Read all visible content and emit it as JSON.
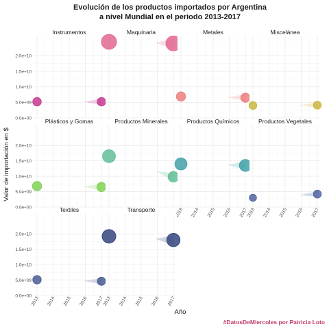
{
  "chart_data": {
    "type": "scatter",
    "title_lines": [
      "Evolución de los productos importados por Argentina",
      "a nivel Mundial en el periodo 2013-2017"
    ],
    "xlabel": "Año",
    "ylabel": "Valor de importación en $",
    "caption": "#DatosDeMiercoles por Patricia Loto",
    "caption_color": "#c23b6e",
    "x_ticks": [
      "2013",
      "2014",
      "2015",
      "2016",
      "2017"
    ],
    "x_range": [
      2013,
      2017
    ],
    "y_ticks": [
      "0.0e+00",
      "5.0e+09",
      "1.0e+10",
      "1.5e+10",
      "2.0e+10"
    ],
    "y_tick_values": [
      0,
      5000000000,
      10000000000,
      15000000000,
      20000000000
    ],
    "y_range": [
      0,
      26500000000
    ],
    "panels": [
      {
        "name": "Instrumentos",
        "color": "#c2338c",
        "values": [
          {
            "x": 2013,
            "y": 5200000000
          },
          {
            "x": 2017,
            "y": 5200000000
          }
        ]
      },
      {
        "name": "Maquinaria",
        "color": "#e1628f",
        "values": [
          {
            "x": 2013,
            "y": 24500000000
          },
          {
            "x": 2017,
            "y": 24000000000
          }
        ]
      },
      {
        "name": "Metales",
        "color": "#ec7a7a",
        "values": [
          {
            "x": 2013,
            "y": 6900000000
          },
          {
            "x": 2017,
            "y": 6500000000
          }
        ]
      },
      {
        "name": "Miscelánea",
        "color": "#c8b43a",
        "values": [
          {
            "x": 2013,
            "y": 4000000000
          },
          {
            "x": 2017,
            "y": 4100000000
          }
        ]
      },
      {
        "name": "Plásticos y Gomas",
        "color": "#7ecf50",
        "values": [
          {
            "x": 2013,
            "y": 6800000000
          },
          {
            "x": 2017,
            "y": 6500000000
          }
        ]
      },
      {
        "name": "Productos Minerales",
        "color": "#5cbc94",
        "values": [
          {
            "x": 2013,
            "y": 16500000000
          },
          {
            "x": 2017,
            "y": 9800000000
          }
        ]
      },
      {
        "name": "Productos Químicos",
        "color": "#3b9ea6",
        "values": [
          {
            "x": 2013,
            "y": 14000000000
          },
          {
            "x": 2017,
            "y": 13500000000
          }
        ]
      },
      {
        "name": "Productos Vegetales",
        "color": "#4a5e9e",
        "values": [
          {
            "x": 2013,
            "y": 3000000000
          },
          {
            "x": 2017,
            "y": 4200000000
          }
        ]
      },
      {
        "name": "Textiles",
        "color": "#42558f",
        "values": [
          {
            "x": 2013,
            "y": 5100000000
          },
          {
            "x": 2017,
            "y": 4600000000
          }
        ]
      },
      {
        "name": "Transporte",
        "color": "#2e3f7a",
        "values": [
          {
            "x": 2013,
            "y": 19200000000
          },
          {
            "x": 2017,
            "y": 18000000000
          }
        ]
      }
    ]
  }
}
